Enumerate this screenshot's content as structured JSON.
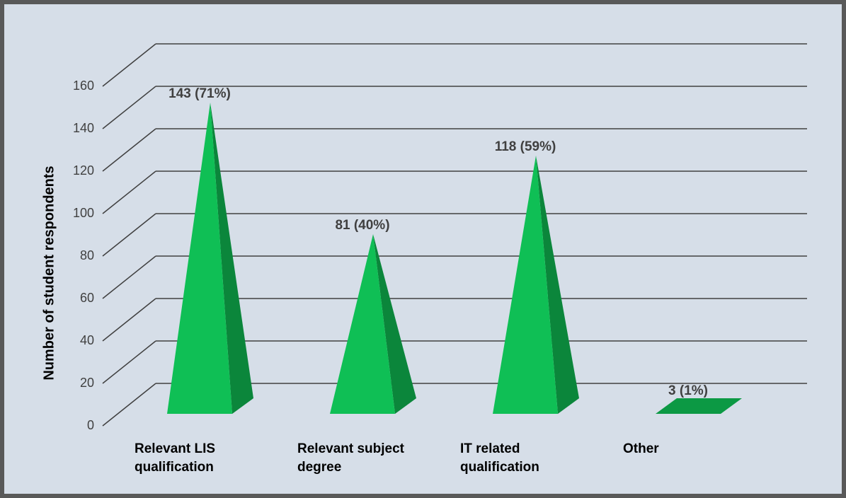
{
  "chart_data": {
    "type": "pyramid",
    "y_label": "Number of student respondents",
    "categories": [
      "Relevant LIS qualification",
      "Relevant subject degree",
      "IT related qualification",
      "Other"
    ],
    "values": [
      143,
      81,
      118,
      3
    ],
    "value_labels": [
      "143 (71%)",
      "81 (40%)",
      "118 (59%)",
      "3 (1%)"
    ],
    "color": "#0fbf55",
    "ylim": [
      0,
      160
    ],
    "yticks": [
      0,
      20,
      40,
      60,
      80,
      100,
      120,
      140,
      160
    ],
    "grid": true
  }
}
